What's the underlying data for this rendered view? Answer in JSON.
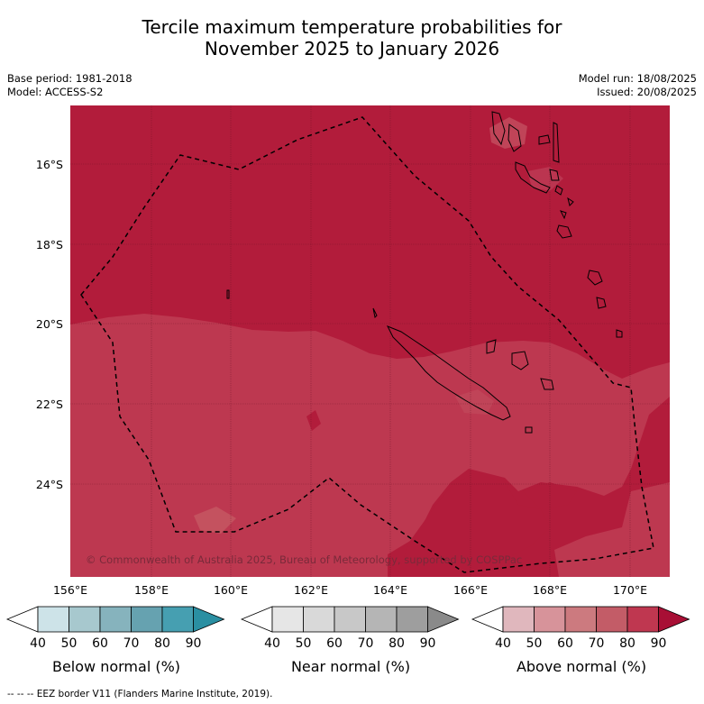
{
  "title_line1": "Tercile maximum temperature probabilities for",
  "title_line2": "November 2025 to January 2026",
  "meta_left": [
    "Base period: 1981-2018",
    "Model: ACCESS-S2"
  ],
  "meta_right": [
    "Model run: 18/08/2025",
    "Issued: 20/08/2025"
  ],
  "lat_ticks": [
    "16°S",
    "18°S",
    "20°S",
    "22°S",
    "24°S"
  ],
  "lon_ticks": [
    "156°E",
    "158°E",
    "160°E",
    "162°E",
    "164°E",
    "166°E",
    "168°E",
    "170°E"
  ],
  "copyright": "© Commonwealth of Australia 2025, Bureau of Meteorology, supported by COSPPac",
  "colorbars": [
    {
      "label": "Below normal (%)",
      "ticks": [
        "40",
        "50",
        "60",
        "70",
        "80",
        "90"
      ],
      "colors": [
        "#ffffff",
        "#cde3e8",
        "#a7c8ce",
        "#86b3bd",
        "#66a2b0",
        "#469fb1",
        "#2a8fa2"
      ]
    },
    {
      "label": "Near normal (%)",
      "ticks": [
        "40",
        "50",
        "60",
        "70",
        "80",
        "90"
      ],
      "colors": [
        "#ffffff",
        "#e6e6e6",
        "#d9d9d9",
        "#c8c8c8",
        "#b5b5b5",
        "#9e9e9e",
        "#8a8a8a"
      ]
    },
    {
      "label": "Above normal (%)",
      "ticks": [
        "40",
        "50",
        "60",
        "70",
        "80",
        "90"
      ],
      "colors": [
        "#ffffff",
        "#e0b7bd",
        "#d7939a",
        "#cc7a7f",
        "#c35c67",
        "#bf3750",
        "#a80f35"
      ]
    }
  ],
  "footnote": "--  --  -- EEZ border V11 (Flanders Marine Institute, 2019).",
  "map_colors": {
    "dominant": "#b21c3b",
    "lighter": "#bd3850",
    "highlight": "#c4525f"
  }
}
